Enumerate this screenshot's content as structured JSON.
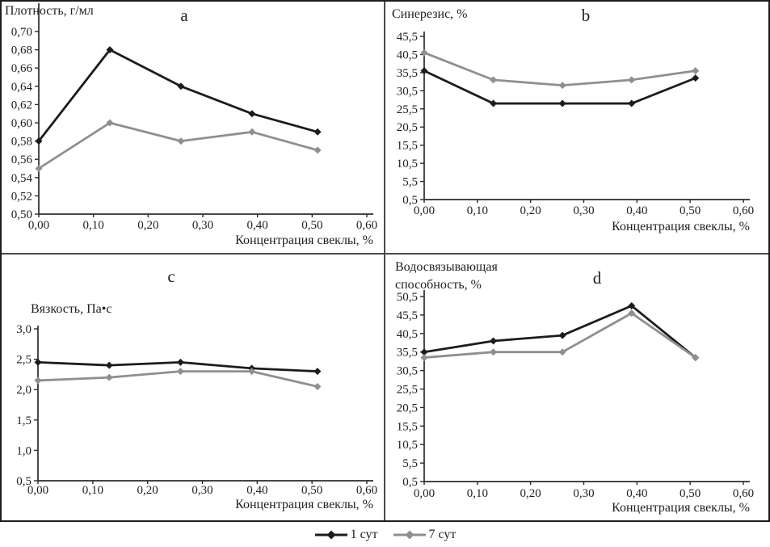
{
  "figure": {
    "border_color": "#1d1d1d",
    "divider_color": "#4a4a4a",
    "legend": {
      "items": [
        {
          "label": "1 сут",
          "color": "#1c1c1c"
        },
        {
          "label": "7 сут",
          "color": "#8f8f8f"
        }
      ]
    }
  },
  "chart_data": [
    {
      "id": "a",
      "panel_letter": "a",
      "type": "line",
      "ylabel_lines": [
        "Плотность, г/мл"
      ],
      "xlabel": "Концентрация свеклы, %",
      "x": [
        0.0,
        0.13,
        0.26,
        0.39,
        0.51
      ],
      "xlim": [
        0.0,
        0.6
      ],
      "xtick_values": [
        0.0,
        0.1,
        0.2,
        0.3,
        0.4,
        0.5,
        0.6
      ],
      "xtick_labels": [
        "0,00",
        "0,10",
        "0,20",
        "0,30",
        "0,40",
        "0,50",
        "0,60"
      ],
      "ylim": [
        0.5,
        0.7
      ],
      "ytick_values": [
        0.7,
        0.68,
        0.66,
        0.64,
        0.62,
        0.6,
        0.58,
        0.56,
        0.54,
        0.52,
        0.5
      ],
      "ytick_labels": [
        "0,70",
        "0,68",
        "0,66",
        "0,64",
        "0,62",
        "0,60",
        "0,58",
        "0,56",
        "0,54",
        "0,52",
        "0,50"
      ],
      "grid": false,
      "series": [
        {
          "name": "1 сут",
          "color": "#1c1c1c",
          "values": [
            0.58,
            0.68,
            0.64,
            0.61,
            0.59
          ]
        },
        {
          "name": "7 сут",
          "color": "#8f8f8f",
          "values": [
            0.55,
            0.6,
            0.58,
            0.59,
            0.57
          ]
        }
      ]
    },
    {
      "id": "b",
      "panel_letter": "b",
      "type": "line",
      "ylabel_lines": [
        "Синерезис, %"
      ],
      "xlabel": "Концентрация свеклы, %",
      "x": [
        0.0,
        0.13,
        0.26,
        0.39,
        0.51
      ],
      "xlim": [
        0.0,
        0.6
      ],
      "xtick_values": [
        0.0,
        0.1,
        0.2,
        0.3,
        0.4,
        0.5,
        0.6
      ],
      "xtick_labels": [
        "0,00",
        "0,10",
        "0,20",
        "0,30",
        "0,40",
        "0,50",
        "0,60"
      ],
      "ylim": [
        0.5,
        45.5
      ],
      "ytick_values": [
        45.5,
        40.5,
        35.5,
        30.5,
        25.5,
        20.5,
        15.5,
        10.5,
        5.5,
        0.5
      ],
      "ytick_labels": [
        "45,5",
        "40,5",
        "35,5",
        "30,5",
        "25,5",
        "20,5",
        "15,5",
        "10,5",
        "5,5",
        "0,5"
      ],
      "grid": false,
      "series": [
        {
          "name": "1 сут",
          "color": "#1c1c1c",
          "values": [
            36,
            27,
            27,
            27,
            34
          ]
        },
        {
          "name": "7 сут",
          "color": "#8f8f8f",
          "values": [
            41,
            33.5,
            32,
            33.5,
            36
          ]
        }
      ]
    },
    {
      "id": "c",
      "panel_letter": "c",
      "type": "line",
      "ylabel_lines": [
        "Вязкость, Па•с"
      ],
      "xlabel": "Концентрация свеклы, %",
      "x": [
        0.0,
        0.13,
        0.26,
        0.39,
        0.51
      ],
      "xlim": [
        0.0,
        0.6
      ],
      "xtick_values": [
        0.0,
        0.1,
        0.2,
        0.3,
        0.4,
        0.5,
        0.6
      ],
      "xtick_labels": [
        "0,00",
        "0,10",
        "0,20",
        "0,30",
        "0,40",
        "0,50",
        "0,60"
      ],
      "ylim": [
        0.5,
        3.0
      ],
      "ytick_values": [
        3.0,
        2.5,
        2.0,
        1.5,
        1.0,
        0.5
      ],
      "ytick_labels": [
        "3,0",
        "2,5",
        "2,0",
        "1,5",
        "1,0",
        "0,5"
      ],
      "grid": false,
      "series": [
        {
          "name": "1 сут",
          "color": "#1c1c1c",
          "values": [
            2.45,
            2.4,
            2.45,
            2.35,
            2.3
          ]
        },
        {
          "name": "7 сут",
          "color": "#8f8f8f",
          "values": [
            2.15,
            2.2,
            2.3,
            2.3,
            2.05
          ]
        }
      ]
    },
    {
      "id": "d",
      "panel_letter": "d",
      "type": "line",
      "ylabel_lines": [
        "Водосвязывающая",
        "способность, %"
      ],
      "xlabel": "Концентрация свеклы, %",
      "x": [
        0.0,
        0.13,
        0.26,
        0.39,
        0.51
      ],
      "xlim": [
        0.0,
        0.6
      ],
      "xtick_values": [
        0.0,
        0.1,
        0.2,
        0.3,
        0.4,
        0.5,
        0.6
      ],
      "xtick_labels": [
        "0,00",
        "0,10",
        "0,20",
        "0,30",
        "0,40",
        "0,50",
        "0,60"
      ],
      "ylim": [
        0.5,
        50.5
      ],
      "ytick_values": [
        50.5,
        45.5,
        40.5,
        35.5,
        30.5,
        25.5,
        20.5,
        15.5,
        10.5,
        5.5,
        0.5
      ],
      "ytick_labels": [
        "50,5",
        "45,5",
        "40,5",
        "35,5",
        "30,5",
        "25,5",
        "20,5",
        "15,5",
        "10,5",
        "5,5",
        "0,5"
      ],
      "grid": false,
      "series": [
        {
          "name": "1 сут",
          "color": "#1c1c1c",
          "values": [
            35.5,
            38.5,
            40,
            48,
            34
          ]
        },
        {
          "name": "7 сут",
          "color": "#8f8f8f",
          "values": [
            34,
            35.5,
            35.5,
            46,
            34
          ]
        }
      ]
    }
  ]
}
